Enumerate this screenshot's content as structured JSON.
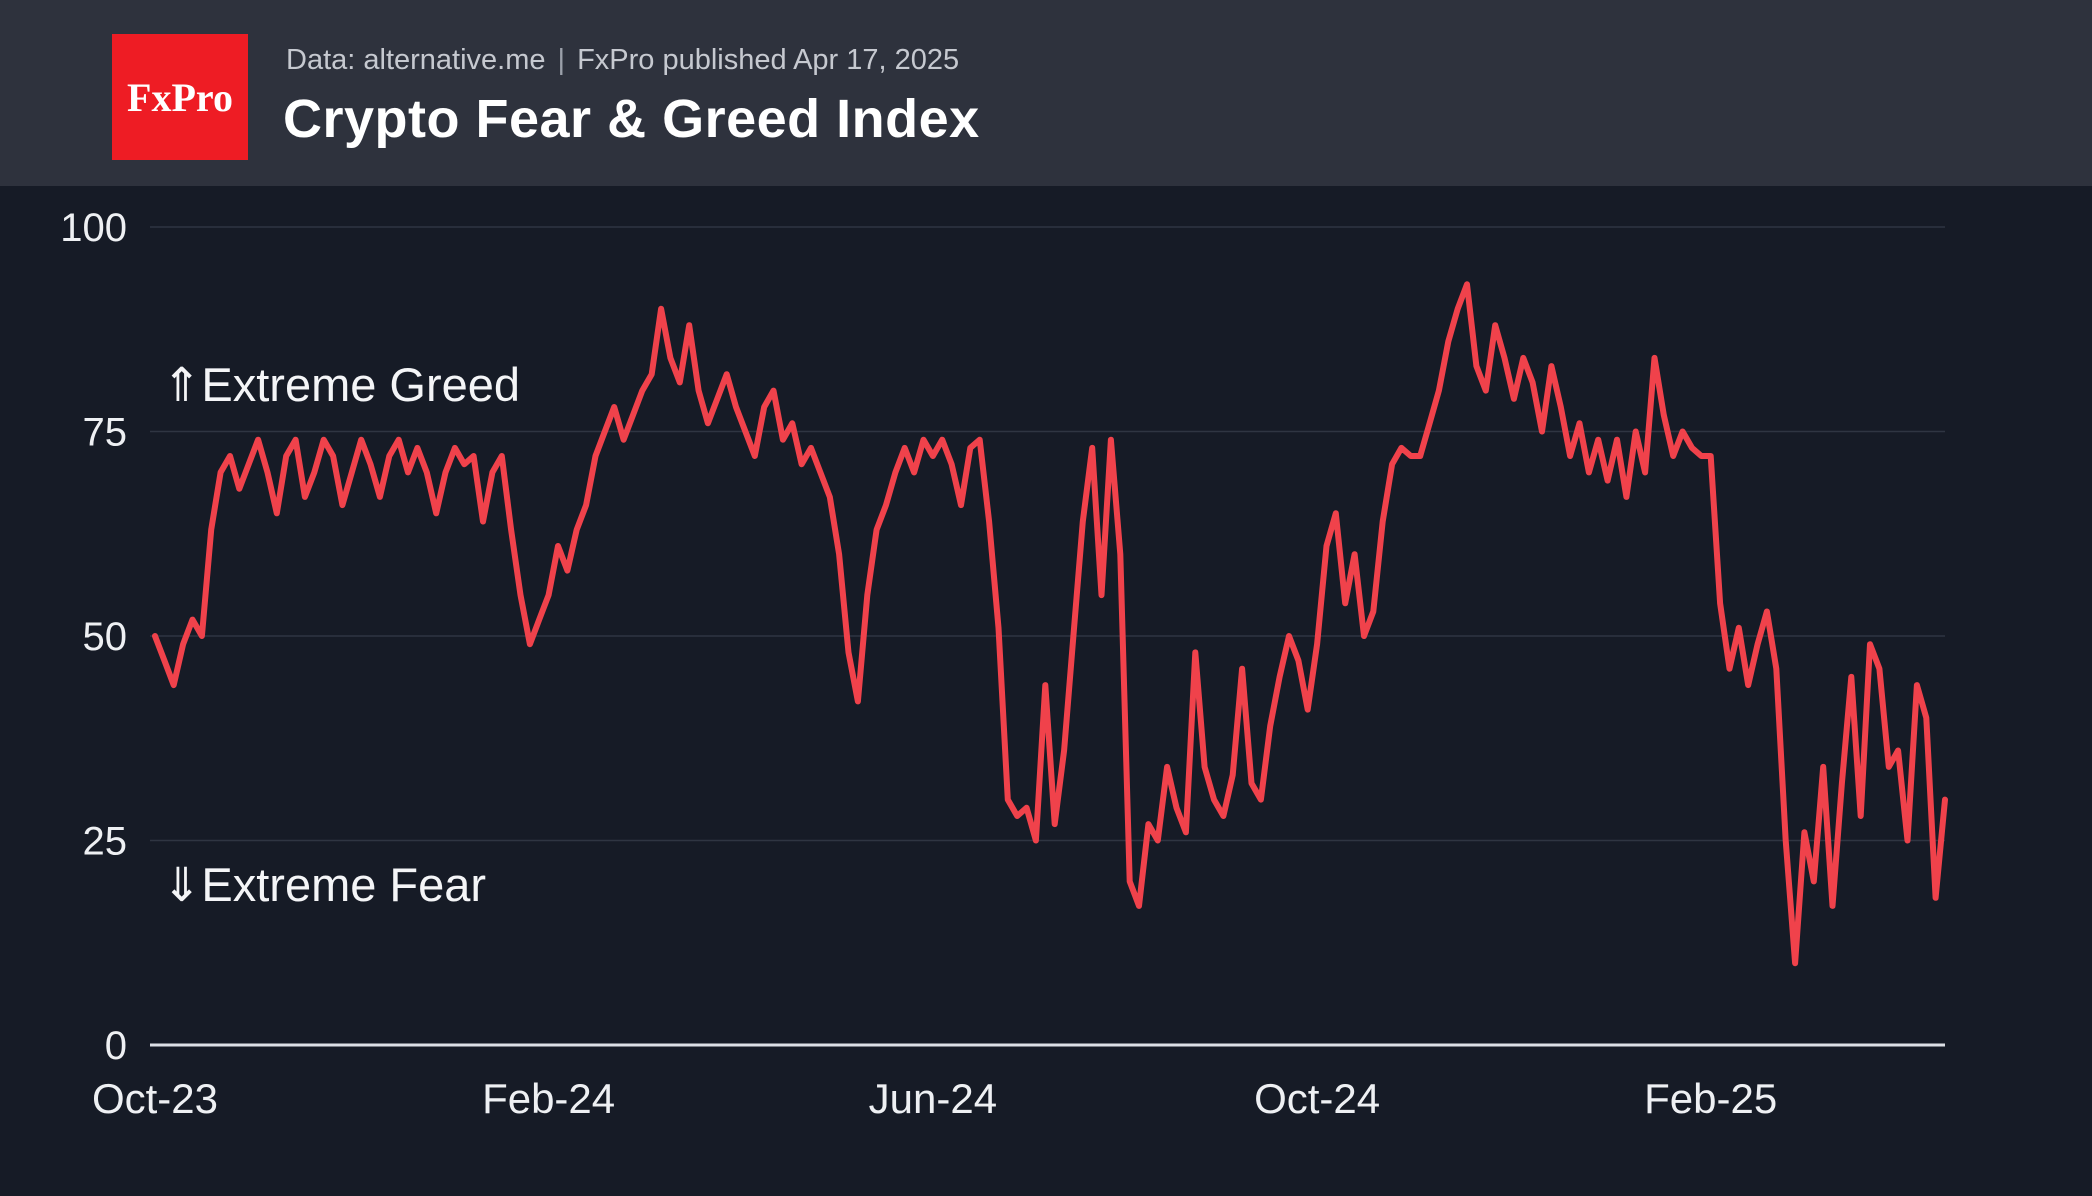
{
  "header": {
    "logo_text": "FxPro",
    "meta_source": "Data: alternative.me",
    "meta_separator": "|",
    "meta_published": "FxPro published Apr 17, 2025",
    "title": "Crypto Fear & Greed Index"
  },
  "colors": {
    "background": "#161b26",
    "header_bg": "#2e323d",
    "logo_bg": "#ee1c24",
    "line": "#f0424b",
    "grid": "#2f3542",
    "axis": "#dde0e6",
    "text": "#eef0f3",
    "muted": "#c6c9d0"
  },
  "chart_data": {
    "type": "line",
    "title": "Crypto Fear & Greed Index",
    "series_name": "Fear & Greed Index",
    "x_start": "2023-10-01",
    "x_end": "2025-04-17",
    "sampling": "approx. every 3 days, values estimated from plot",
    "ylim": [
      0,
      100
    ],
    "yticks": [
      0,
      25,
      50,
      75,
      100
    ],
    "grid": "horizontal",
    "legend": "none",
    "xticks": [
      {
        "label": "Oct-23",
        "index": 0
      },
      {
        "label": "Feb-24",
        "index": 42
      },
      {
        "label": "Jun-24",
        "index": 83
      },
      {
        "label": "Oct-24",
        "index": 124
      },
      {
        "label": "Feb-25",
        "index": 166
      }
    ],
    "values": [
      50,
      47,
      44,
      49,
      52,
      50,
      63,
      70,
      72,
      68,
      71,
      74,
      70,
      65,
      72,
      74,
      67,
      70,
      74,
      72,
      66,
      70,
      74,
      71,
      67,
      72,
      74,
      70,
      73,
      70,
      65,
      70,
      73,
      71,
      72,
      64,
      70,
      72,
      63,
      55,
      49,
      52,
      55,
      61,
      58,
      63,
      66,
      72,
      75,
      78,
      74,
      77,
      80,
      82,
      90,
      84,
      81,
      88,
      80,
      76,
      79,
      82,
      78,
      75,
      72,
      78,
      80,
      74,
      76,
      71,
      73,
      70,
      67,
      60,
      48,
      42,
      55,
      63,
      66,
      70,
      73,
      70,
      74,
      72,
      74,
      71,
      66,
      73,
      74,
      64,
      51,
      30,
      28,
      29,
      25,
      44,
      27,
      36,
      50,
      64,
      73,
      55,
      74,
      60,
      20,
      17,
      27,
      25,
      34,
      29,
      26,
      48,
      34,
      30,
      28,
      33,
      46,
      32,
      30,
      39,
      45,
      50,
      47,
      41,
      49,
      61,
      65,
      54,
      60,
      50,
      53,
      64,
      71,
      73,
      72,
      72,
      76,
      80,
      86,
      90,
      93,
      83,
      80,
      88,
      84,
      79,
      84,
      81,
      75,
      83,
      78,
      72,
      76,
      70,
      74,
      69,
      74,
      67,
      75,
      70,
      84,
      77,
      72,
      75,
      73,
      72,
      72,
      54,
      46,
      51,
      44,
      49,
      53,
      46,
      25,
      10,
      26,
      20,
      34,
      17,
      32,
      45,
      28,
      49,
      46,
      34,
      36,
      25,
      44,
      40,
      18,
      30
    ],
    "annotations": {
      "greed": {
        "arrow": "⇑",
        "label": "Extreme Greed",
        "approx_value": 81
      },
      "fear": {
        "arrow": "⇓",
        "label": "Extreme Fear",
        "approx_value": 20
      }
    }
  }
}
